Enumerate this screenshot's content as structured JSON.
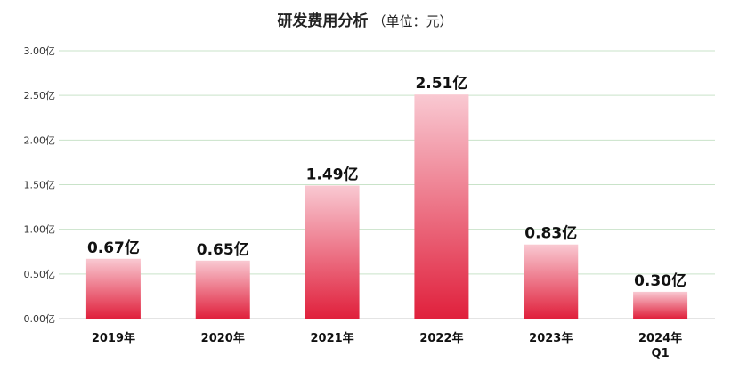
{
  "chart_data": {
    "type": "bar",
    "title": "研发费用分析",
    "subtitle": "（单位：元）",
    "categories": [
      "2019年",
      "2020年",
      "2021年",
      "2022年",
      "2023年",
      "2024年 Q1"
    ],
    "category_lines": [
      [
        "2019年"
      ],
      [
        "2020年"
      ],
      [
        "2021年"
      ],
      [
        "2022年"
      ],
      [
        "2023年"
      ],
      [
        "2024年",
        "Q1"
      ]
    ],
    "values": [
      0.67,
      0.65,
      1.49,
      2.51,
      0.83,
      0.3
    ],
    "data_labels": [
      "0.67亿",
      "0.65亿",
      "1.49亿",
      "2.51亿",
      "0.83亿",
      "0.30亿"
    ],
    "yticks": [
      0,
      0.5,
      1.0,
      1.5,
      2.0,
      2.5,
      3.0
    ],
    "ytick_labels": [
      "0.00亿",
      "0.50亿",
      "1.00亿",
      "1.50亿",
      "2.00亿",
      "2.50亿",
      "3.00亿"
    ],
    "ylim": [
      0,
      3.0
    ],
    "grid": true,
    "legend": "none",
    "colors": {
      "bar_bottom": "#e0203c",
      "bar_top": "#f9c9d2",
      "grid": "#c9e3c9",
      "axis": "#c8c8c8"
    }
  }
}
